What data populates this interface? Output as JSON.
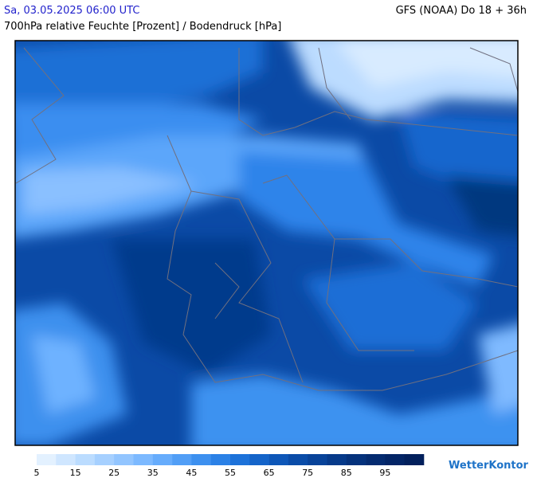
{
  "header": {
    "datetime": "Sa, 03.05.2025 06:00 UTC",
    "model": "GFS (NOAA) Do 18 + 36h",
    "subtitle": "700hPa relative Feuchte [Prozent] / Bodendruck [hPa]"
  },
  "legend": {
    "ticks": [
      5,
      15,
      25,
      35,
      45,
      55,
      65,
      75,
      85,
      95
    ],
    "colors": [
      "#e3f1ff",
      "#cfe6ff",
      "#bbdcff",
      "#a6d0ff",
      "#92c5ff",
      "#7cb9ff",
      "#66acfc",
      "#519ef6",
      "#3d90ef",
      "#2b81e6",
      "#1d72d9",
      "#1464c9",
      "#0e57b8",
      "#0a4ca8",
      "#084399",
      "#063a8a",
      "#05327c",
      "#042b70",
      "#032566",
      "#02205c"
    ]
  },
  "logo": "WetterKontor"
}
